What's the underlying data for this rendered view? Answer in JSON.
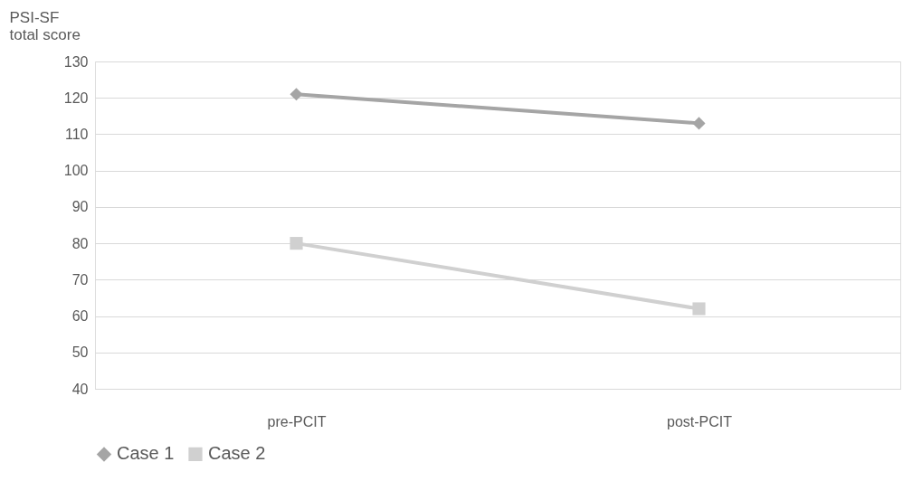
{
  "chart_data": {
    "type": "line",
    "ylabel": "PSI-SF total score",
    "categories": [
      "pre-PCIT",
      "post-PCIT"
    ],
    "series": [
      {
        "name": "Case 1",
        "color": "#a5a5a5",
        "values": [
          121,
          113
        ],
        "marker": "diamond"
      },
      {
        "name": "Case 2",
        "color": "#d0d0d0",
        "values": [
          80,
          62
        ],
        "marker": "square"
      }
    ],
    "ylim": [
      40,
      130
    ],
    "yticks": [
      40,
      50,
      60,
      70,
      80,
      90,
      100,
      110,
      120,
      130
    ],
    "grid": "y",
    "legend": "bottom",
    "line_style": "solid"
  }
}
